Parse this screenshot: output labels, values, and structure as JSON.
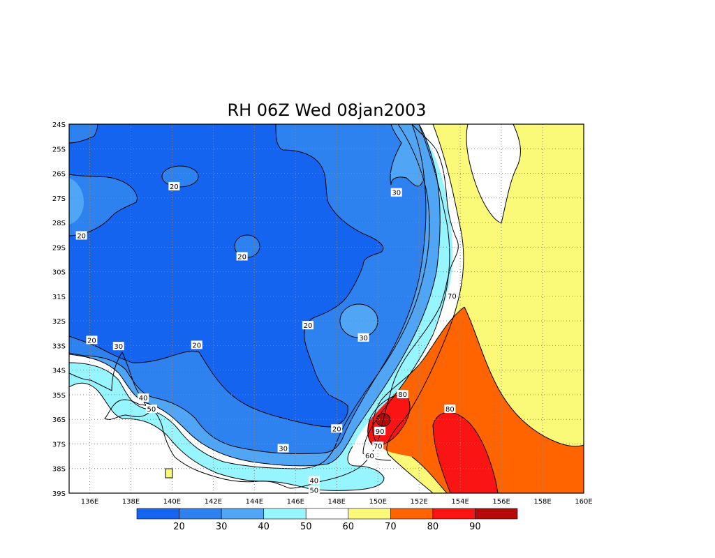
{
  "title": "RH 06Z Wed 08jan2003",
  "map": {
    "lon_range": [
      135,
      160
    ],
    "lat_range": [
      -39,
      -24
    ],
    "grid": "dotted",
    "lon_ticks": [
      "136E",
      "138E",
      "140E",
      "142E",
      "144E",
      "146E",
      "148E",
      "150E",
      "152E",
      "154E",
      "156E",
      "158E",
      "160E"
    ],
    "lat_ticks": [
      "24S",
      "25S",
      "26S",
      "27S",
      "28S",
      "29S",
      "30S",
      "31S",
      "32S",
      "33S",
      "34S",
      "35S",
      "36S",
      "37S",
      "38S",
      "39S"
    ],
    "contour_labels": [
      {
        "text": "20",
        "lon": 140.1,
        "lat": -26.55
      },
      {
        "text": "30",
        "lon": 150.9,
        "lat": -26.8
      },
      {
        "text": "20",
        "lon": 135.6,
        "lat": -28.55
      },
      {
        "text": "20",
        "lon": 143.4,
        "lat": -29.4
      },
      {
        "text": "70",
        "lon": 153.6,
        "lat": -31.0
      },
      {
        "text": "20",
        "lon": 146.6,
        "lat": -32.2
      },
      {
        "text": "30",
        "lon": 149.3,
        "lat": -32.7
      },
      {
        "text": "20",
        "lon": 136.1,
        "lat": -32.8
      },
      {
        "text": "30",
        "lon": 137.4,
        "lat": -33.05
      },
      {
        "text": "20",
        "lon": 141.2,
        "lat": -33.0
      },
      {
        "text": "80",
        "lon": 151.2,
        "lat": -35.0
      },
      {
        "text": "40",
        "lon": 138.6,
        "lat": -35.15
      },
      {
        "text": "50",
        "lon": 139.0,
        "lat": -35.6
      },
      {
        "text": "80",
        "lon": 153.5,
        "lat": -35.6
      },
      {
        "text": "90",
        "lon": 150.1,
        "lat": -36.5
      },
      {
        "text": "20",
        "lon": 148.0,
        "lat": -36.4
      },
      {
        "text": "70",
        "lon": 150.0,
        "lat": -37.1
      },
      {
        "text": "30",
        "lon": 145.4,
        "lat": -37.2
      },
      {
        "text": "60",
        "lon": 149.6,
        "lat": -37.5
      },
      {
        "text": "40",
        "lon": 146.9,
        "lat": -38.5
      },
      {
        "text": "50",
        "lon": 146.9,
        "lat": -38.9
      }
    ]
  },
  "colorbar": {
    "colors": [
      "#1464f0",
      "#2d82f0",
      "#50a5f5",
      "#96f5ff",
      "#ffffff",
      "#fafa78",
      "#ff6400",
      "#fa1414",
      "#b40a0a"
    ],
    "labels": [
      "20",
      "30",
      "40",
      "50",
      "60",
      "70",
      "80",
      "90"
    ]
  },
  "levels": {
    "l10": "#1464f0",
    "l20": "#2d82f0",
    "l30": "#50a5f5",
    "l40": "#96f5ff",
    "l50": "#ffffff",
    "l60": "#fafa78",
    "l70": "#ff6400",
    "l80": "#fa1414",
    "l90": "#b40a0a"
  }
}
